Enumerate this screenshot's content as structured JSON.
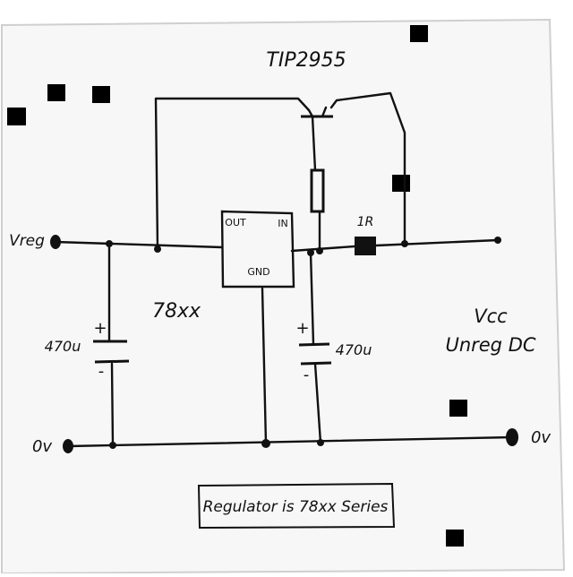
{
  "labels": {
    "transistor": "TIP2955",
    "resistor": "1R",
    "input_left": "Vreg",
    "regulator_part": "78xx",
    "reg_out_pin": "OUT",
    "reg_in_pin": "IN",
    "reg_gnd_pin": "GND",
    "cap_left_value": "470u",
    "cap_right_value": "470u",
    "output_right_line1": "Vcc",
    "output_right_line2": "Unreg DC",
    "ground_left": "0v",
    "ground_right": "0v",
    "caption": "Regulator is 78xx Series",
    "plus": "+",
    "minus": "-"
  },
  "colors": {
    "ink": "#111111",
    "paper": "#f7f7f7",
    "border": "#cfcfcf"
  }
}
